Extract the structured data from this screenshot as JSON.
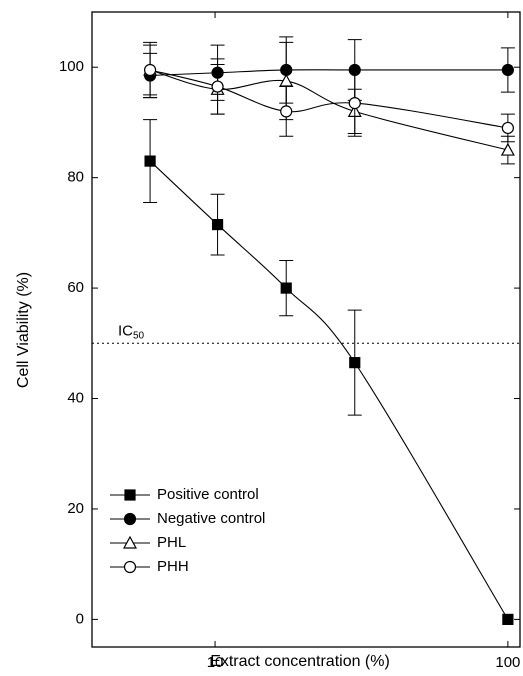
{
  "chart_data": {
    "type": "line",
    "xlabel": "Extract concentration (%)",
    "ylabel": "Cell Viability (%)",
    "x": [
      6,
      10.2,
      17.5,
      30,
      100
    ],
    "xlim": [
      3.8,
      110
    ],
    "xticks": [
      10,
      100
    ],
    "xscale": "log",
    "ylim": [
      -5,
      110
    ],
    "yticks": [
      0,
      20,
      40,
      60,
      80,
      100
    ],
    "series": [
      {
        "name": "Positive control",
        "color": "#000000",
        "marker": "square",
        "fill": true,
        "values": [
          83,
          71.5,
          60,
          46.5,
          0
        ],
        "errors": [
          7.5,
          5.5,
          5,
          9.5,
          0
        ]
      },
      {
        "name": "Negative control",
        "color": "#000000",
        "marker": "circle",
        "fill": true,
        "values": [
          98.5,
          99,
          99.5,
          99.5,
          99.5
        ],
        "errors": [
          4,
          5,
          6,
          5.5,
          4
        ]
      },
      {
        "name": "PHL",
        "color": "#000000",
        "marker": "triangle",
        "fill": false,
        "values": [
          99.5,
          96,
          97.5,
          92,
          85
        ],
        "errors": [
          5,
          4.5,
          7,
          4,
          2.5
        ]
      },
      {
        "name": "PHH",
        "color": "#000000",
        "marker": "circle",
        "fill": false,
        "values": [
          99.5,
          96.5,
          92,
          93.5,
          89
        ],
        "errors": [
          4.5,
          5,
          4.5,
          6,
          2.5
        ]
      }
    ],
    "annotation": {
      "text": "IC",
      "sub": "50",
      "value": 50
    },
    "legend": "lower left"
  }
}
